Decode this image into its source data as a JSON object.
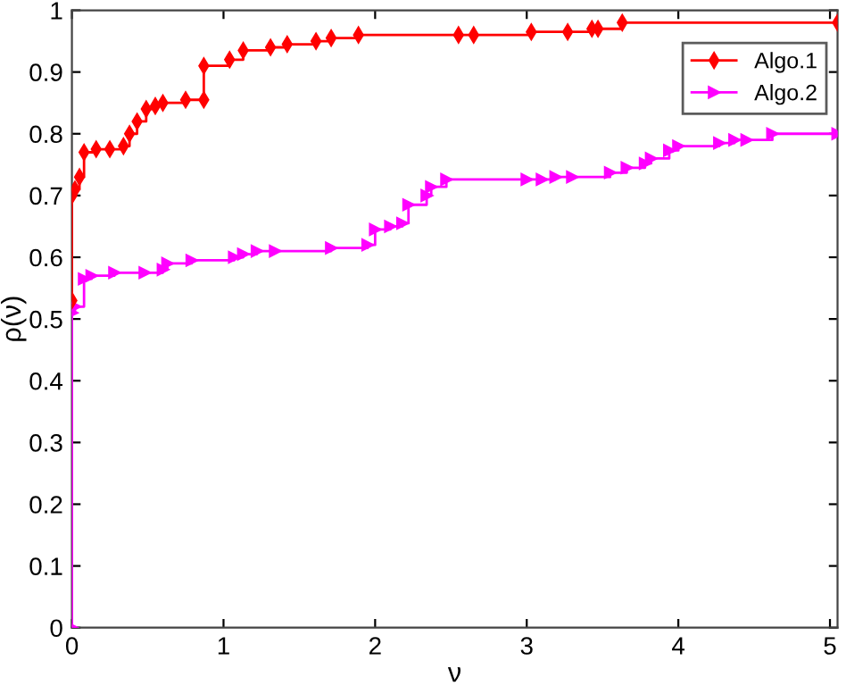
{
  "chart_data": {
    "type": "step",
    "xlabel": "ν",
    "ylabel": "ρ(ν)",
    "xlim": [
      0,
      5.05
    ],
    "ylim": [
      0,
      1
    ],
    "xticks": [
      0,
      1,
      2,
      3,
      4,
      5
    ],
    "yticks": [
      0,
      0.1,
      0.2,
      0.3,
      0.4,
      0.5,
      0.6,
      0.7,
      0.8,
      0.9,
      1
    ],
    "grid": false,
    "legend": "top right",
    "line_style": "solid",
    "series": [
      {
        "name": "Algo.1",
        "color": "#ff0000",
        "marker": "diamond",
        "x": [
          0,
          0,
          0.02,
          0.05,
          0.08,
          0.16,
          0.25,
          0.34,
          0.38,
          0.43,
          0.49,
          0.55,
          0.6,
          0.75,
          0.87,
          0.87,
          1.04,
          1.13,
          1.31,
          1.42,
          1.61,
          1.71,
          1.89,
          2.55,
          2.65,
          3.03,
          3.27,
          3.43,
          3.47,
          3.63,
          5.05
        ],
        "values": [
          0.53,
          0.7,
          0.71,
          0.73,
          0.77,
          0.775,
          0.775,
          0.78,
          0.8,
          0.82,
          0.84,
          0.845,
          0.85,
          0.855,
          0.855,
          0.91,
          0.92,
          0.935,
          0.94,
          0.945,
          0.95,
          0.955,
          0.96,
          0.96,
          0.96,
          0.965,
          0.965,
          0.97,
          0.97,
          0.98,
          0.98
        ]
      },
      {
        "name": "Algo.2",
        "color": "#ff00ff",
        "marker": "triangle",
        "x": [
          0,
          0,
          0.02,
          0.08,
          0.13,
          0.28,
          0.48,
          0.6,
          0.63,
          0.79,
          1.07,
          1.13,
          1.22,
          1.34,
          1.71,
          1.95,
          2.0,
          2.1,
          2.18,
          2.22,
          2.34,
          2.37,
          2.47,
          3.0,
          3.1,
          3.19,
          3.3,
          3.55,
          3.66,
          3.78,
          3.82,
          3.94,
          4.0,
          4.27,
          4.37,
          4.45,
          4.62,
          5.05
        ],
        "values": [
          0,
          0.51,
          0.52,
          0.565,
          0.57,
          0.575,
          0.575,
          0.58,
          0.59,
          0.595,
          0.6,
          0.605,
          0.61,
          0.61,
          0.615,
          0.62,
          0.645,
          0.65,
          0.655,
          0.685,
          0.7,
          0.714,
          0.726,
          0.726,
          0.726,
          0.73,
          0.73,
          0.737,
          0.745,
          0.752,
          0.76,
          0.773,
          0.78,
          0.785,
          0.79,
          0.79,
          0.8,
          0.8
        ]
      }
    ]
  }
}
